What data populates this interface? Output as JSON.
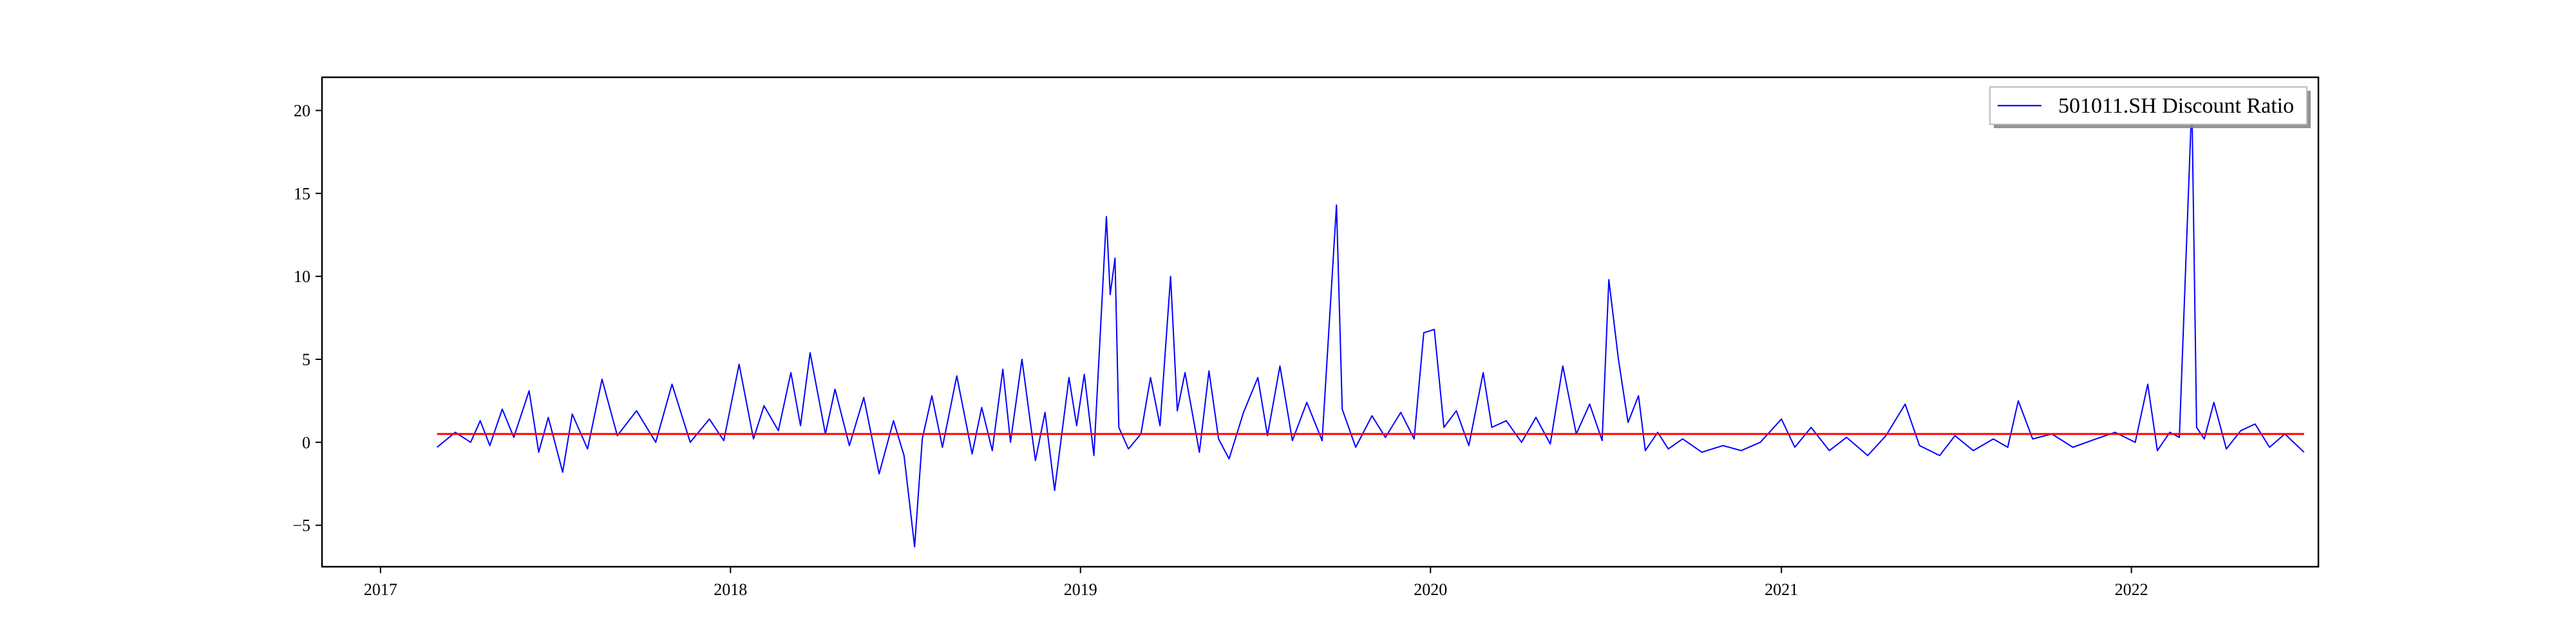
{
  "chart_data": {
    "type": "line",
    "title": "",
    "xlabel": "",
    "ylabel": "",
    "xlim": [
      "2016-11-01",
      "2022-07-15"
    ],
    "ylim": [
      -7.5,
      22.0
    ],
    "x_ticks": [
      {
        "date": "2017-01-01",
        "label": "2017"
      },
      {
        "date": "2018-01-01",
        "label": "2018"
      },
      {
        "date": "2019-01-01",
        "label": "2019"
      },
      {
        "date": "2020-01-01",
        "label": "2020"
      },
      {
        "date": "2021-01-01",
        "label": "2021"
      },
      {
        "date": "2022-01-01",
        "label": "2022"
      }
    ],
    "y_ticks": [
      {
        "value": -5,
        "label": "−5"
      },
      {
        "value": 0,
        "label": "0"
      },
      {
        "value": 5,
        "label": "5"
      },
      {
        "value": 10,
        "label": "10"
      },
      {
        "value": 15,
        "label": "15"
      },
      {
        "value": 20,
        "label": "20"
      }
    ],
    "grid": false,
    "legend_position": "top-right",
    "series": [
      {
        "name": "501011.SH Discount Ratio",
        "color": "#0000ff",
        "points": [
          [
            "2017-03-01",
            -0.3
          ],
          [
            "2017-03-20",
            0.6
          ],
          [
            "2017-04-05",
            0.0
          ],
          [
            "2017-04-15",
            1.3
          ],
          [
            "2017-04-25",
            -0.2
          ],
          [
            "2017-05-08",
            2.0
          ],
          [
            "2017-05-20",
            0.3
          ],
          [
            "2017-06-05",
            3.1
          ],
          [
            "2017-06-15",
            -0.6
          ],
          [
            "2017-06-25",
            1.5
          ],
          [
            "2017-07-10",
            -1.8
          ],
          [
            "2017-07-20",
            1.7
          ],
          [
            "2017-08-05",
            -0.4
          ],
          [
            "2017-08-20",
            3.8
          ],
          [
            "2017-09-05",
            0.4
          ],
          [
            "2017-09-25",
            1.9
          ],
          [
            "2017-10-15",
            0.0
          ],
          [
            "2017-11-01",
            3.5
          ],
          [
            "2017-11-20",
            0.0
          ],
          [
            "2017-12-10",
            1.4
          ],
          [
            "2017-12-25",
            0.1
          ],
          [
            "2018-01-10",
            4.7
          ],
          [
            "2018-01-25",
            0.2
          ],
          [
            "2018-02-05",
            2.2
          ],
          [
            "2018-02-20",
            0.7
          ],
          [
            "2018-03-05",
            4.2
          ],
          [
            "2018-03-15",
            1.0
          ],
          [
            "2018-03-25",
            5.4
          ],
          [
            "2018-04-10",
            0.5
          ],
          [
            "2018-04-20",
            3.2
          ],
          [
            "2018-05-05",
            -0.2
          ],
          [
            "2018-05-20",
            2.7
          ],
          [
            "2018-06-05",
            -1.9
          ],
          [
            "2018-06-20",
            1.3
          ],
          [
            "2018-07-01",
            -0.8
          ],
          [
            "2018-07-12",
            -6.3
          ],
          [
            "2018-07-20",
            0.2
          ],
          [
            "2018-07-30",
            2.8
          ],
          [
            "2018-08-10",
            -0.3
          ],
          [
            "2018-08-25",
            4.0
          ],
          [
            "2018-09-10",
            -0.7
          ],
          [
            "2018-09-20",
            2.1
          ],
          [
            "2018-10-01",
            -0.5
          ],
          [
            "2018-10-12",
            4.4
          ],
          [
            "2018-10-20",
            0.0
          ],
          [
            "2018-11-01",
            5.0
          ],
          [
            "2018-11-15",
            -1.1
          ],
          [
            "2018-11-25",
            1.8
          ],
          [
            "2018-12-05",
            -2.9
          ],
          [
            "2018-12-20",
            3.9
          ],
          [
            "2018-12-28",
            1.0
          ],
          [
            "2019-01-05",
            4.1
          ],
          [
            "2019-01-15",
            -0.8
          ],
          [
            "2019-01-28",
            13.6
          ],
          [
            "2019-02-01",
            8.9
          ],
          [
            "2019-02-06",
            11.1
          ],
          [
            "2019-02-10",
            0.9
          ],
          [
            "2019-02-20",
            -0.4
          ],
          [
            "2019-03-05",
            0.5
          ],
          [
            "2019-03-15",
            3.9
          ],
          [
            "2019-03-25",
            1.0
          ],
          [
            "2019-04-05",
            10.0
          ],
          [
            "2019-04-12",
            1.9
          ],
          [
            "2019-04-20",
            4.2
          ],
          [
            "2019-05-05",
            -0.6
          ],
          [
            "2019-05-15",
            4.3
          ],
          [
            "2019-05-25",
            0.2
          ],
          [
            "2019-06-05",
            -1.0
          ],
          [
            "2019-06-20",
            1.8
          ],
          [
            "2019-07-05",
            3.9
          ],
          [
            "2019-07-15",
            0.4
          ],
          [
            "2019-07-28",
            4.6
          ],
          [
            "2019-08-10",
            0.1
          ],
          [
            "2019-08-25",
            2.4
          ],
          [
            "2019-09-10",
            0.1
          ],
          [
            "2019-09-25",
            14.3
          ],
          [
            "2019-10-01",
            2.0
          ],
          [
            "2019-10-15",
            -0.3
          ],
          [
            "2019-11-01",
            1.6
          ],
          [
            "2019-11-15",
            0.3
          ],
          [
            "2019-12-01",
            1.8
          ],
          [
            "2019-12-15",
            0.2
          ],
          [
            "2019-12-25",
            6.6
          ],
          [
            "2020-01-05",
            6.8
          ],
          [
            "2020-01-15",
            0.9
          ],
          [
            "2020-01-28",
            1.9
          ],
          [
            "2020-02-10",
            -0.2
          ],
          [
            "2020-02-25",
            4.2
          ],
          [
            "2020-03-05",
            0.9
          ],
          [
            "2020-03-20",
            1.3
          ],
          [
            "2020-04-05",
            0.0
          ],
          [
            "2020-04-20",
            1.5
          ],
          [
            "2020-05-05",
            -0.1
          ],
          [
            "2020-05-18",
            4.6
          ],
          [
            "2020-06-01",
            0.5
          ],
          [
            "2020-06-15",
            2.3
          ],
          [
            "2020-06-28",
            0.1
          ],
          [
            "2020-07-05",
            9.8
          ],
          [
            "2020-07-15",
            5.0
          ],
          [
            "2020-07-25",
            1.2
          ],
          [
            "2020-08-05",
            2.8
          ],
          [
            "2020-08-12",
            -0.5
          ],
          [
            "2020-08-25",
            0.6
          ],
          [
            "2020-09-05",
            -0.4
          ],
          [
            "2020-09-20",
            0.2
          ],
          [
            "2020-10-10",
            -0.6
          ],
          [
            "2020-11-01",
            -0.2
          ],
          [
            "2020-11-20",
            -0.5
          ],
          [
            "2020-12-10",
            0.0
          ],
          [
            "2021-01-01",
            1.4
          ],
          [
            "2021-01-15",
            -0.3
          ],
          [
            "2021-02-01",
            0.9
          ],
          [
            "2021-02-20",
            -0.5
          ],
          [
            "2021-03-10",
            0.3
          ],
          [
            "2021-04-01",
            -0.8
          ],
          [
            "2021-04-20",
            0.4
          ],
          [
            "2021-05-10",
            2.3
          ],
          [
            "2021-05-25",
            -0.2
          ],
          [
            "2021-06-15",
            -0.8
          ],
          [
            "2021-07-01",
            0.4
          ],
          [
            "2021-07-20",
            -0.5
          ],
          [
            "2021-08-10",
            0.2
          ],
          [
            "2021-08-25",
            -0.3
          ],
          [
            "2021-09-05",
            2.5
          ],
          [
            "2021-09-20",
            0.2
          ],
          [
            "2021-10-10",
            0.5
          ],
          [
            "2021-11-01",
            -0.3
          ],
          [
            "2021-11-25",
            0.2
          ],
          [
            "2021-12-15",
            0.6
          ],
          [
            "2022-01-05",
            0.0
          ],
          [
            "2022-01-18",
            3.5
          ],
          [
            "2022-01-28",
            -0.5
          ],
          [
            "2022-02-10",
            0.6
          ],
          [
            "2022-02-20",
            0.3
          ],
          [
            "2022-03-05",
            20.6
          ],
          [
            "2022-03-10",
            0.9
          ],
          [
            "2022-03-18",
            0.2
          ],
          [
            "2022-03-28",
            2.4
          ],
          [
            "2022-04-10",
            -0.4
          ],
          [
            "2022-04-25",
            0.7
          ],
          [
            "2022-05-10",
            1.1
          ],
          [
            "2022-05-25",
            -0.3
          ],
          [
            "2022-06-10",
            0.5
          ],
          [
            "2022-06-30",
            -0.6
          ]
        ]
      },
      {
        "name": "",
        "color": "#ff0000",
        "points": [
          [
            "2017-03-01",
            0.5
          ],
          [
            "2022-06-30",
            0.5
          ]
        ]
      }
    ]
  }
}
